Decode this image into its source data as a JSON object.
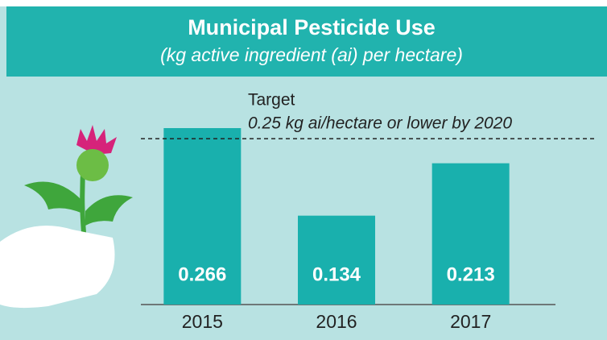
{
  "chart_data": {
    "type": "bar",
    "title": "Municipal Pesticide Use",
    "subtitle": "(kg active ingredient (ai) per hectare)",
    "categories": [
      "2015",
      "2016",
      "2017"
    ],
    "values": [
      0.266,
      0.134,
      0.213
    ],
    "color": "#19b0ad",
    "ylim": [
      0,
      0.3
    ],
    "target": 0.25,
    "target_label": "Target",
    "target_note": "0.25 kg ai/hectare or lower by 2020"
  }
}
